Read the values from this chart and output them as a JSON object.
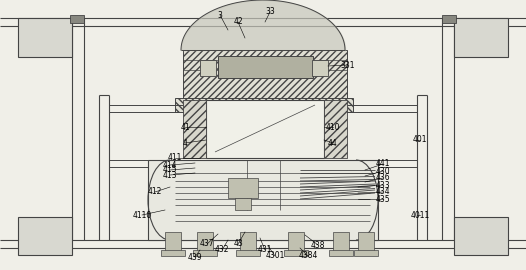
{
  "bg_color": "#f0efe8",
  "line_color": "#444444",
  "fig_width": 5.26,
  "fig_height": 2.7,
  "dpi": 100
}
